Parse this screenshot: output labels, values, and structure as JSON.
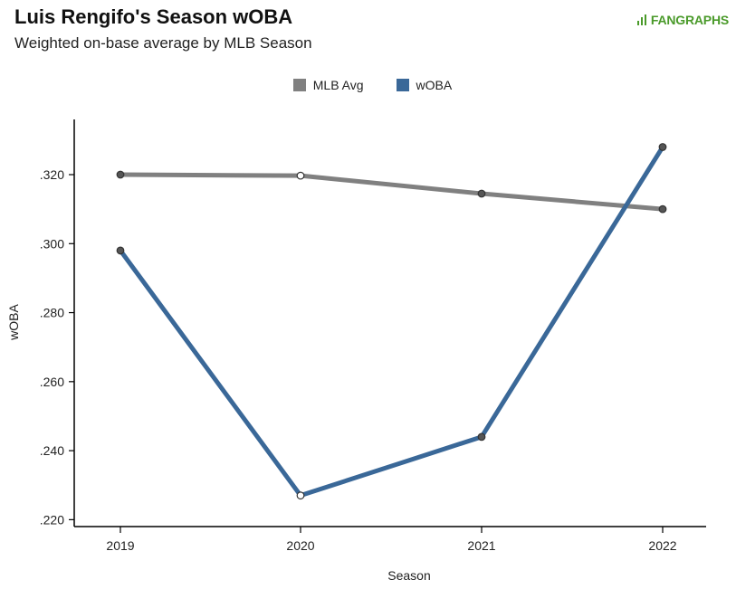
{
  "header": {
    "title": "Luis Rengifo's Season wOBA",
    "subtitle": "Weighted on-base average by MLB Season",
    "logo_text": "FANGRAPHS"
  },
  "colors": {
    "mlb_avg": "#808080",
    "woba": "#3a6898",
    "logo": "#4a9a2a"
  },
  "chart_data": {
    "type": "line",
    "title": "Luis Rengifo's Season wOBA",
    "subtitle": "Weighted on-base average by MLB Season",
    "xlabel": "Season",
    "ylabel": "wOBA",
    "categories": [
      "2019",
      "2020",
      "2021",
      "2022"
    ],
    "ylim": [
      0.218,
      0.336
    ],
    "yticks": [
      0.22,
      0.24,
      0.26,
      0.28,
      0.3,
      0.32
    ],
    "ytick_labels": [
      ".220",
      ".240",
      ".260",
      ".280",
      ".300",
      ".320"
    ],
    "legend_position": "top-center",
    "grid": false,
    "series": [
      {
        "name": "MLB Avg",
        "color": "#808080",
        "values": [
          0.32,
          0.3197,
          0.3145,
          0.31
        ]
      },
      {
        "name": "wOBA",
        "color": "#3a6898",
        "values": [
          0.298,
          0.227,
          0.244,
          0.328
        ]
      }
    ]
  }
}
